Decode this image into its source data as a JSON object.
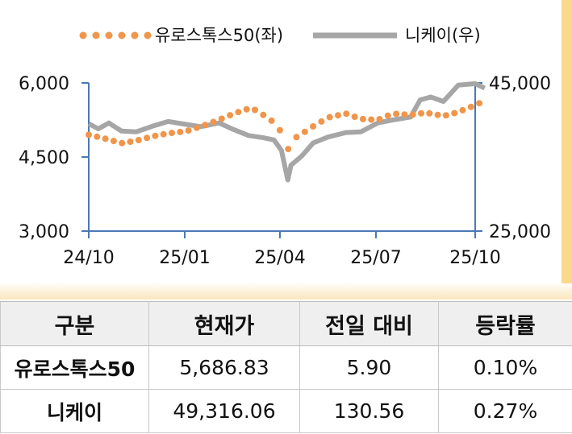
{
  "legend": {
    "eurostoxx": "유로스톡스50(좌)",
    "nikkei": "니케이(우)"
  },
  "colors": {
    "eurostoxx": "#f0954a",
    "nikkei": "#a6a6a6",
    "axis": "#4a78b4"
  },
  "chart_data": {
    "type": "line",
    "x_ticks": [
      "24/10",
      "25/01",
      "25/04",
      "25/07",
      "25/10"
    ],
    "left_axis": {
      "ticks": [
        "6,000",
        "4,500",
        "3,000"
      ],
      "ylim": [
        3000,
        6000
      ]
    },
    "right_axis": {
      "ticks": [
        "45,000",
        "25,000"
      ],
      "ylim": [
        25000,
        45000
      ]
    },
    "series": [
      {
        "name": "유로스톡스50(좌)",
        "axis": "left",
        "style": "dotted",
        "x": [
          "2024-10-01",
          "2024-10-15",
          "2024-11-01",
          "2024-11-15",
          "2024-12-01",
          "2024-12-15",
          "2025-01-01",
          "2025-01-15",
          "2025-02-01",
          "2025-02-15",
          "2025-03-01",
          "2025-03-08",
          "2025-03-15",
          "2025-03-25",
          "2025-04-01",
          "2025-04-07",
          "2025-04-15",
          "2025-05-01",
          "2025-05-15",
          "2025-06-01",
          "2025-06-15",
          "2025-07-01",
          "2025-07-15",
          "2025-08-01",
          "2025-08-15",
          "2025-09-01",
          "2025-09-15",
          "2025-10-01",
          "2025-10-10"
        ],
        "values": [
          4950,
          4880,
          4780,
          4830,
          4920,
          4980,
          5020,
          5120,
          5250,
          5380,
          5480,
          5450,
          5350,
          5200,
          5000,
          4650,
          4900,
          5120,
          5300,
          5380,
          5270,
          5250,
          5380,
          5350,
          5400,
          5330,
          5410,
          5550,
          5640
        ]
      },
      {
        "name": "니케이(우)",
        "axis": "right",
        "style": "solid",
        "x": [
          "2024-10-01",
          "2024-10-10",
          "2024-10-20",
          "2024-11-01",
          "2024-11-15",
          "2024-12-01",
          "2024-12-15",
          "2025-01-01",
          "2025-01-15",
          "2025-02-01",
          "2025-02-15",
          "2025-03-01",
          "2025-03-15",
          "2025-03-25",
          "2025-04-01",
          "2025-04-07",
          "2025-04-10",
          "2025-04-20",
          "2025-05-01",
          "2025-05-15",
          "2025-06-01",
          "2025-06-15",
          "2025-07-01",
          "2025-07-15",
          "2025-08-01",
          "2025-08-10",
          "2025-08-20",
          "2025-09-01",
          "2025-09-15",
          "2025-10-01",
          "2025-10-10"
        ],
        "values": [
          39500,
          38800,
          39600,
          38500,
          38400,
          39200,
          39800,
          39400,
          39100,
          39600,
          38700,
          37900,
          37600,
          37300,
          35900,
          31900,
          33900,
          35100,
          36900,
          37700,
          38300,
          38400,
          39600,
          40000,
          40400,
          42700,
          43100,
          42500,
          44700,
          44900,
          44300
        ]
      }
    ]
  },
  "table": {
    "headers": [
      "구분",
      "현재가",
      "전일 대비",
      "등락률"
    ],
    "rows": [
      [
        "유로스톡스50",
        "5,686.83",
        "5.90",
        "0.10%"
      ],
      [
        "니케이",
        "49,316.06",
        "130.56",
        "0.27%"
      ]
    ]
  }
}
